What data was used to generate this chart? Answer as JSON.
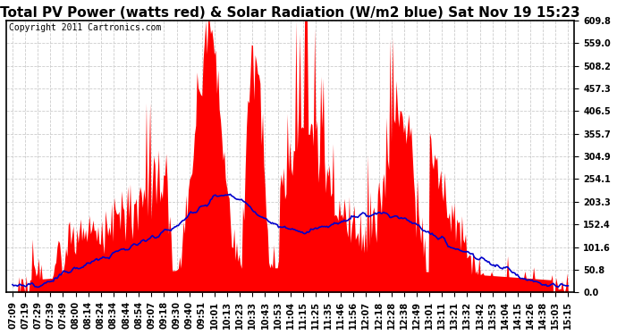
{
  "title": "Total PV Power (watts red) & Solar Radiation (W/m2 blue) Sat Nov 19 15:23",
  "copyright": "Copyright 2011 Cartronics.com",
  "yticks": [
    0.0,
    50.8,
    101.6,
    152.4,
    203.3,
    254.1,
    304.9,
    355.7,
    406.5,
    457.3,
    508.2,
    559.0,
    609.8
  ],
  "ylim": [
    0.0,
    609.8
  ],
  "xtick_labels": [
    "07:09",
    "07:19",
    "07:29",
    "07:39",
    "07:49",
    "08:00",
    "08:14",
    "08:24",
    "08:34",
    "08:44",
    "08:54",
    "09:07",
    "09:18",
    "09:30",
    "09:40",
    "09:51",
    "10:01",
    "10:13",
    "10:23",
    "10:33",
    "10:43",
    "10:53",
    "11:04",
    "11:15",
    "11:25",
    "11:35",
    "11:46",
    "11:56",
    "12:07",
    "12:18",
    "12:28",
    "12:38",
    "12:49",
    "13:01",
    "13:11",
    "13:21",
    "13:32",
    "13:42",
    "13:53",
    "14:04",
    "14:15",
    "14:26",
    "14:38",
    "15:03",
    "15:15"
  ],
  "bg_color": "#ffffff",
  "plot_bg_color": "#ffffff",
  "red_color": "#ff0000",
  "blue_color": "#0000cc",
  "grid_color": "#cccccc",
  "title_fontsize": 11,
  "tick_fontsize": 7,
  "copyright_fontsize": 7
}
